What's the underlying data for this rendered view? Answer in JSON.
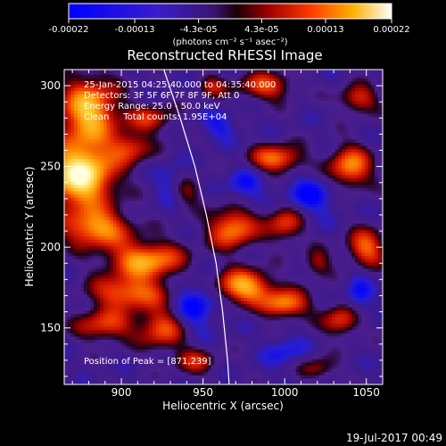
{
  "chart_data": {
    "type": "heatmap",
    "title": "Reconstructed RHESSI Image",
    "xlabel": "Heliocentric X (arcsec)",
    "ylabel": "Heliocentric Y (arcsec)",
    "xlim": [
      865,
      1060
    ],
    "ylim": [
      115,
      310
    ],
    "x_ticks": [
      900,
      950,
      1000,
      1050
    ],
    "y_ticks": [
      150,
      200,
      250,
      300
    ],
    "colorbar": {
      "range": [
        -0.00022,
        0.00022
      ],
      "tick_values": [
        -0.00022,
        -0.00013,
        -4.3e-05,
        4.3e-05,
        0.00013,
        0.00022
      ],
      "tick_labels": [
        "-0.00022",
        "-0.00013",
        "-4.3e-05",
        "4.3e-05",
        "0.00013",
        "0.00022"
      ],
      "units_label": "(photons cm⁻² s⁻¹ asec⁻²)"
    },
    "annotations": {
      "time_range": "25-Jan-2015 04:25:40.000 to 04:35:40.000",
      "detectors": "Detectors: 3F 5F 6F 7F 8F 9F, Att 0",
      "energy": "Energy Range: 25.0 - 50.0 keV",
      "method": "Clean     Total counts: 1.95E+04",
      "peak": "Position of Peak = [871,239]"
    },
    "peak": [
      871,
      239
    ],
    "limb_curve": [
      [
        926,
        310
      ],
      [
        936,
        280
      ],
      [
        945,
        250
      ],
      [
        952,
        220
      ],
      [
        958,
        190
      ],
      [
        962,
        160
      ],
      [
        965,
        130
      ],
      [
        966,
        115
      ]
    ],
    "blobs": [
      {
        "x": 875,
        "y": 245,
        "sx": 14,
        "sy": 14,
        "v": 1.3
      },
      {
        "x": 880,
        "y": 285,
        "sx": 12,
        "sy": 14,
        "v": 1.0
      },
      {
        "x": 905,
        "y": 262,
        "sx": 9,
        "sy": 7,
        "v": 0.55
      },
      {
        "x": 885,
        "y": 212,
        "sx": 14,
        "sy": 8,
        "v": 0.85
      },
      {
        "x": 915,
        "y": 192,
        "sx": 16,
        "sy": 8,
        "v": 0.9
      },
      {
        "x": 905,
        "y": 172,
        "sx": 16,
        "sy": 7,
        "v": 0.75
      },
      {
        "x": 890,
        "y": 152,
        "sx": 12,
        "sy": 7,
        "v": 0.6
      },
      {
        "x": 925,
        "y": 150,
        "sx": 10,
        "sy": 9,
        "v": 0.65
      },
      {
        "x": 918,
        "y": 280,
        "sx": 10,
        "sy": 6,
        "v": 0.5
      },
      {
        "x": 968,
        "y": 212,
        "sx": 10,
        "sy": 9,
        "v": 0.8
      },
      {
        "x": 975,
        "y": 176,
        "sx": 12,
        "sy": 7,
        "v": 0.95
      },
      {
        "x": 1000,
        "y": 165,
        "sx": 10,
        "sy": 6,
        "v": 0.8
      },
      {
        "x": 995,
        "y": 255,
        "sx": 11,
        "sy": 6,
        "v": 0.75
      },
      {
        "x": 1040,
        "y": 250,
        "sx": 9,
        "sy": 9,
        "v": 0.8
      },
      {
        "x": 1000,
        "y": 215,
        "sx": 8,
        "sy": 8,
        "v": 0.6
      },
      {
        "x": 1050,
        "y": 200,
        "sx": 8,
        "sy": 8,
        "v": 0.7
      },
      {
        "x": 1035,
        "y": 155,
        "sx": 8,
        "sy": 7,
        "v": 0.6
      },
      {
        "x": 988,
        "y": 300,
        "sx": 12,
        "sy": 6,
        "v": 0.6
      },
      {
        "x": 1045,
        "y": 292,
        "sx": 8,
        "sy": 6,
        "v": 0.55
      },
      {
        "x": 945,
        "y": 130,
        "sx": 9,
        "sy": 6,
        "v": 0.45
      },
      {
        "x": 1020,
        "y": 125,
        "sx": 8,
        "sy": 5,
        "v": 0.4
      },
      {
        "x": 955,
        "y": 300,
        "sx": 6,
        "sy": 5,
        "v": 0.4
      },
      {
        "x": 940,
        "y": 235,
        "sx": 7,
        "sy": 6,
        "v": 0.35
      },
      {
        "x": 1020,
        "y": 190,
        "sx": 6,
        "sy": 6,
        "v": 0.4
      }
    ],
    "negative_regions": [
      {
        "x": 945,
        "y": 165,
        "sx": 10,
        "sy": 12,
        "v": -0.45
      },
      {
        "x": 1015,
        "y": 232,
        "sx": 12,
        "sy": 9,
        "v": -0.4
      },
      {
        "x": 975,
        "y": 238,
        "sx": 8,
        "sy": 8,
        "v": -0.35
      },
      {
        "x": 1045,
        "y": 170,
        "sx": 6,
        "sy": 10,
        "v": -0.35
      },
      {
        "x": 1000,
        "y": 135,
        "sx": 9,
        "sy": 7,
        "v": -0.3
      },
      {
        "x": 930,
        "y": 240,
        "sx": 6,
        "sy": 8,
        "v": -0.3
      },
      {
        "x": 960,
        "y": 275,
        "sx": 8,
        "sy": 6,
        "v": -0.3
      }
    ]
  },
  "footer": {
    "date": "19-Jul-2017 00:49"
  }
}
